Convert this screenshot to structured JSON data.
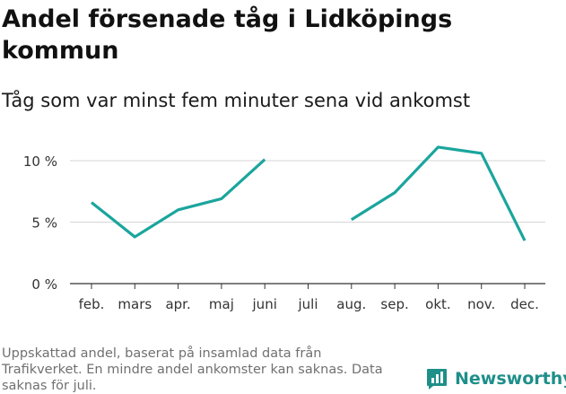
{
  "title": "Andel försenade tåg i Lidköpings kommun",
  "subtitle": "Tåg som var minst fem minuter sena vid ankomst",
  "footnote": "Uppskattad andel, baserat på insamlad data från Trafikverket. En mindre andel ankomster kan saknas. Data saknas för juli.",
  "brand": {
    "name": "Newsworthy",
    "icon": "newsworthy-logo-icon"
  },
  "colors": {
    "line": "#1aa59d",
    "grid": "#d6d6d6",
    "axis": "#333333",
    "brand": "#1e8f89"
  },
  "chart_data": {
    "type": "line",
    "categories": [
      "feb.",
      "mars",
      "apr.",
      "maj",
      "juni",
      "juli",
      "aug.",
      "sep.",
      "okt.",
      "nov.",
      "dec."
    ],
    "series": [
      {
        "values": [
          6.6,
          3.8,
          6.0,
          6.9,
          10.1,
          null,
          5.2,
          7.4,
          11.1,
          10.6,
          3.5
        ]
      }
    ],
    "y_ticks": [
      0,
      5,
      10
    ],
    "y_tick_labels": [
      "0 %",
      "5 %",
      "10 %"
    ],
    "ylim": [
      0,
      10.8
    ],
    "grid": true,
    "xlabel": "",
    "ylabel": ""
  }
}
